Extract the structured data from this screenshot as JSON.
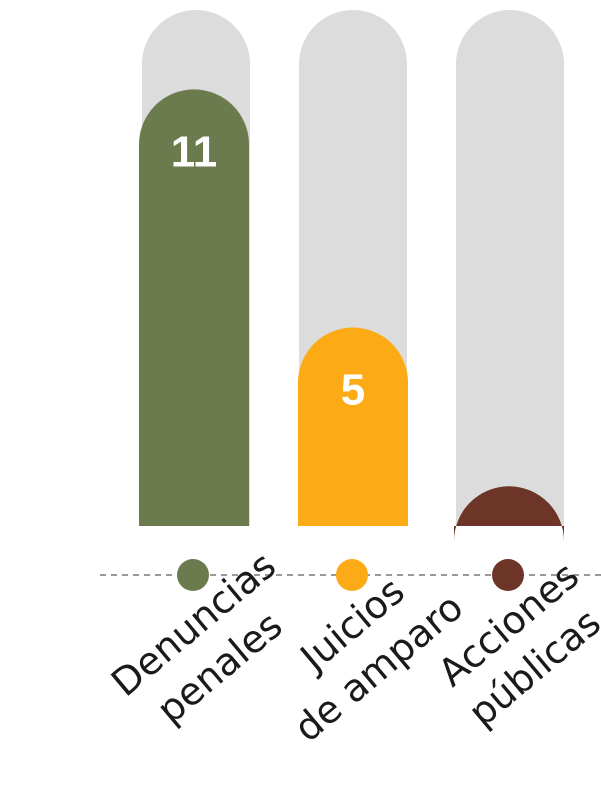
{
  "chart_data": {
    "type": "bar",
    "categories": [
      [
        "Denuncias",
        "penales"
      ],
      [
        "Juicios",
        "de amparo"
      ],
      [
        "Acciones",
        "públicas"
      ]
    ],
    "values": [
      11,
      5,
      1
    ],
    "colors": [
      "#6b7b4d",
      "#fcab17",
      "#6d3428"
    ],
    "track_color": "#dcdcdc",
    "axis_line_color": "#9a9a9a",
    "label_color": "#1a1a1a",
    "grid": false,
    "legend": "none",
    "xlabel": "",
    "ylabel": "",
    "title": ""
  }
}
